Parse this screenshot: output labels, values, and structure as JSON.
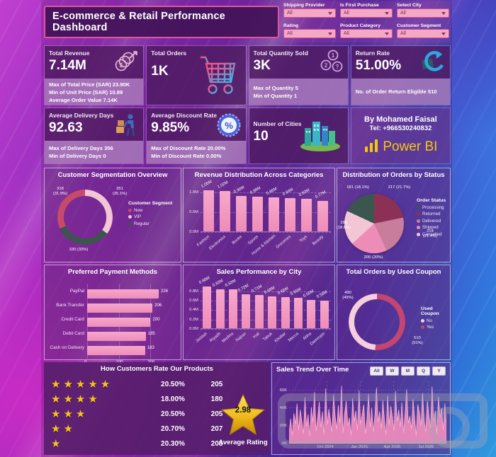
{
  "header": {
    "title": "E-commerce & Retail Performance Dashboard",
    "filters": [
      {
        "label": "Shipping Provider",
        "value": "All"
      },
      {
        "label": "Is First Purchase",
        "value": "All"
      },
      {
        "label": "Select City",
        "value": "All"
      },
      {
        "label": "Rating",
        "value": "All"
      },
      {
        "label": "Product Category",
        "value": "All"
      },
      {
        "label": "Customer Segment",
        "value": "All"
      }
    ]
  },
  "kpis": [
    {
      "title": "Total Revenue",
      "value": "7.14M",
      "icon": "money-growth-icon",
      "details": [
        "Max of Total Price (SAR) 23.90K",
        "Min of Unit Price (SAR) 10.89",
        "Average Order Value 7.14K"
      ]
    },
    {
      "title": "Total Orders",
      "value": "1K",
      "icon": "shopping-cart-icon",
      "details": []
    },
    {
      "title": "Total Quantity Sold",
      "value": "3K",
      "icon": "quantity-circles-icon",
      "details": [
        "Max of Quantity 5",
        "Min of Quantity 1"
      ]
    },
    {
      "title": "Return Rate",
      "value": "51.00%",
      "icon": "return-arrow-icon",
      "details": [
        "No. of Order Return Eligible 510"
      ]
    },
    {
      "title": "Average Delivery Days",
      "value": "92.63",
      "icon": "delivery-icon",
      "details": [
        "Max of Delivery Days 356",
        "Min of Delivery Days 0"
      ]
    },
    {
      "title": "Average Discount Rate",
      "value": "9.85%",
      "icon": "discount-badge-icon",
      "details": [
        "Max of Discount Rate 20.00%",
        "Min of Discount Rate 0.00%"
      ]
    },
    {
      "title": "Number of Cities",
      "value": "10",
      "icon": "city-buildings-icon",
      "details": []
    }
  ],
  "credit": {
    "author": "By Mohamed Faisal",
    "tel": "Tel: +966530240832",
    "brand": "Power BI"
  },
  "ratings": {
    "title": "How Customers Rate Our Products",
    "rows": [
      {
        "stars": 5,
        "pct": "20.50%",
        "count": "205"
      },
      {
        "stars": 4,
        "pct": "18.00%",
        "count": "180"
      },
      {
        "stars": 3,
        "pct": "20.50%",
        "count": "205"
      },
      {
        "stars": 2,
        "pct": "20.70%",
        "count": "207"
      },
      {
        "stars": 1,
        "pct": "20.30%",
        "count": "203"
      }
    ],
    "average": "2.98",
    "average_label": "Average Rating"
  },
  "chart_data": [
    {
      "id": "customer_segmentation",
      "type": "pie",
      "donut": true,
      "title": "Customer Segmentation Overview",
      "legend_title": "Customer Segment",
      "legend_position": "right",
      "slices": [
        {
          "label": "New",
          "value": 318,
          "pct": "31.9%",
          "color": "#c84a6b"
        },
        {
          "label": "VIP",
          "value": 351,
          "pct": "35.1%",
          "color": "#f3c6d6"
        },
        {
          "label": "Regular",
          "value": 330,
          "pct": "33%",
          "color": "#3c554d"
        }
      ]
    },
    {
      "id": "revenue_by_category",
      "type": "bar",
      "title": "Revenue Distribution Across Categories",
      "categories": [
        "Fashion",
        "Electronics",
        "Books",
        "Sports",
        "Home & Kitchen",
        "Groceries",
        "Toys",
        "Beauty"
      ],
      "values": [
        1.05,
        1.02,
        0.9,
        0.88,
        0.86,
        0.84,
        0.83,
        0.77
      ],
      "labels": [
        "1.05M",
        "1.02M",
        "0.90M",
        "0.88M",
        "0.86M",
        "0.84M",
        "0.83M",
        "0.77M"
      ],
      "yticks": [
        "1.0M",
        "0.5M",
        "0.0M"
      ],
      "ylim": [
        0,
        1.15
      ],
      "grid": true
    },
    {
      "id": "orders_by_status",
      "type": "pie",
      "title": "Distribution of Orders by Status",
      "legend_title": "Order Status",
      "legend_position": "right",
      "slices": [
        {
          "label": "Processing",
          "value": 181,
          "pct": "18.1%",
          "color": "#3a564f"
        },
        {
          "label": "Returned",
          "value": 217,
          "pct": "21.7%",
          "color": "#8d3154"
        },
        {
          "label": "Delivered",
          "value": 214,
          "pct": "21.4%",
          "color": "#c77d9b"
        },
        {
          "label": "Shipped",
          "value": 200,
          "pct": "20%",
          "color": "#ee8cb8"
        },
        {
          "label": "Cancelled",
          "value": 188,
          "pct": "18.8%",
          "color": "#f3c6d6"
        }
      ]
    },
    {
      "id": "payment_methods",
      "type": "bar",
      "title": "Preferred Payment Methods",
      "orientation": "horizontal",
      "categories": [
        "PayPal",
        "Bank Transfer",
        "Credit Card",
        "Debit Card",
        "Cash on Delivery"
      ],
      "values": [
        226,
        206,
        200,
        185,
        183
      ],
      "labels": [
        "226",
        "206",
        "200",
        "185",
        "183"
      ],
      "xticks": [
        "0",
        "100",
        "200"
      ],
      "xlim": [
        0,
        237
      ],
      "grid": true
    },
    {
      "id": "sales_by_city",
      "type": "bar",
      "title": "Sales Performance by City",
      "categories": [
        "Jeddah",
        "Riyadh",
        "Medina",
        "Najran",
        "Hail",
        "Tabuk",
        "Khobar",
        "Mecca",
        "Abha",
        "Dammam"
      ],
      "values": [
        0.88,
        0.83,
        0.83,
        0.72,
        0.71,
        0.68,
        0.66,
        0.65,
        0.6,
        0.58
      ],
      "labels": [
        "0.88M",
        "0.83M",
        "0.83M",
        "0.72M",
        "0.71M",
        "0.68M",
        "0.66M",
        "0.65M",
        "0.60M",
        "0.58M"
      ],
      "yticks": [
        "0.8M",
        "0.6M",
        "0.4M",
        "0.2M",
        "0.0M"
      ],
      "ylim": [
        0,
        0.93
      ],
      "grid": true
    },
    {
      "id": "used_coupon",
      "type": "pie",
      "donut": true,
      "title": "Total Orders by Used Coupon",
      "legend_title": "Used Coupon",
      "legend_position": "right",
      "slices": [
        {
          "label": "No",
          "value": 490,
          "pct": "49%",
          "color": "#f6cfdd"
        },
        {
          "label": "Yes",
          "value": 510,
          "pct": "51%",
          "color": "#c2466f"
        }
      ]
    },
    {
      "id": "sales_trend",
      "type": "area",
      "title": "Sales Trend Over Time",
      "buttons": [
        "All",
        "W",
        "M",
        "Q",
        "Y"
      ],
      "yticks": [
        "60K",
        "40K",
        "20K",
        "0K"
      ],
      "xticks": [
        "Oct 2024",
        "Jan 2025",
        "Apr 2025",
        "Jul 2025"
      ],
      "ylim": [
        0,
        70
      ],
      "series_color": "#f48fbc",
      "values": [
        12,
        28,
        9,
        34,
        22,
        45,
        15,
        38,
        26,
        11,
        52,
        19,
        33,
        8,
        41,
        24,
        58,
        14,
        30,
        47,
        18,
        36,
        10,
        62,
        21,
        39,
        27,
        13,
        55,
        31,
        16,
        43,
        23,
        65,
        12,
        35,
        48,
        20,
        29,
        9,
        51,
        25,
        37,
        15,
        60,
        22,
        33,
        44,
        11,
        28,
        56,
        18,
        40,
        13,
        32,
        63,
        24,
        36,
        17,
        49,
        27,
        10,
        54,
        21,
        42,
        30,
        14,
        59,
        25,
        38,
        19,
        46,
        12,
        34,
        61,
        23,
        31,
        16,
        50,
        28,
        9,
        44,
        35,
        20,
        57,
        26,
        13,
        48,
        32,
        17,
        64,
        24,
        37,
        11,
        53,
        29,
        40,
        15,
        45,
        22
      ]
    }
  ]
}
